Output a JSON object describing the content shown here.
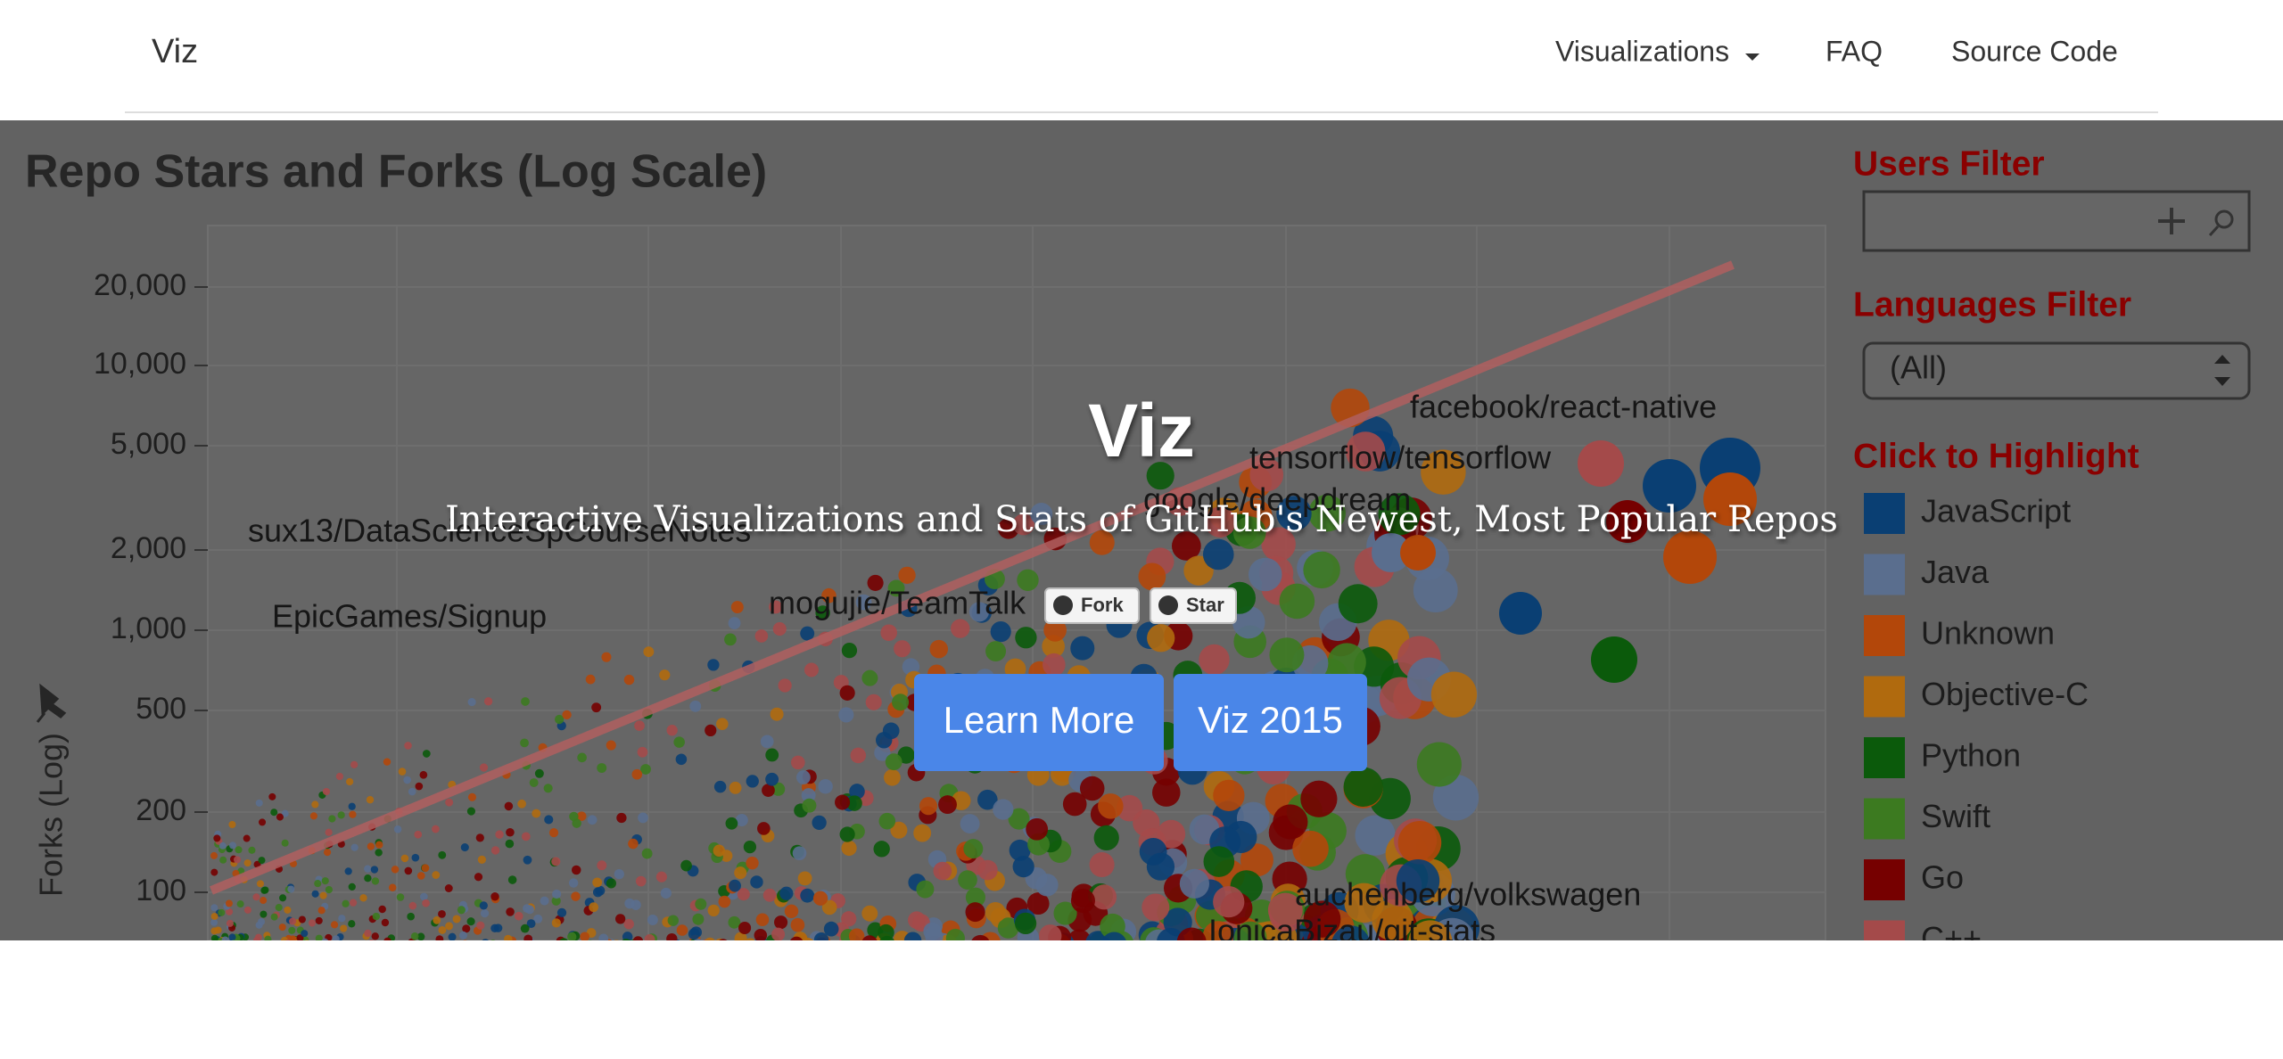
{
  "nav": {
    "brand": "Viz",
    "links": [
      "Visualizations",
      "FAQ",
      "Source Code"
    ]
  },
  "background_chart": {
    "title": "Repo Stars and Forks (Log Scale)",
    "y_axis_label": "Forks (Log)",
    "yticks": [
      "20,000",
      "10,000",
      "5,000",
      "2,000",
      "1,000",
      "500",
      "200",
      "100"
    ],
    "repo_labels": [
      "facebook/react-native",
      "tensorflow/tensorflow",
      "google/deepdream",
      "sux13/DataScienceSpCourseNotes",
      "EpicGames/Signup",
      "mogujie/TeamTalk",
      "auchenberg/volkswagen",
      "IonicaBizau/git-stats"
    ],
    "sidebar": {
      "users_filter": "Users Filter",
      "languages_filter": "Languages Filter",
      "language_select": "(All)",
      "highlight_title": "Click to Highlight",
      "languages": [
        {
          "name": "JavaScript",
          "color": "#0a3f73"
        },
        {
          "name": "Java",
          "color": "#5a6e8e"
        },
        {
          "name": "Unknown",
          "color": "#b3470a"
        },
        {
          "name": "Objective-C",
          "color": "#b06a0e"
        },
        {
          "name": "Python",
          "color": "#0b5a0b"
        },
        {
          "name": "Swift",
          "color": "#3c7a20"
        },
        {
          "name": "Go",
          "color": "#760000"
        },
        {
          "name": "C++",
          "color": "#a44a4a"
        }
      ]
    }
  },
  "hero": {
    "title": "Viz",
    "subtitle": "Interactive Visualizations and Stats of GitHub's Newest, Most Popular Repos",
    "github_buttons": [
      "Fork",
      "Star"
    ],
    "buttons": [
      "Learn More",
      "Viz 2015"
    ]
  }
}
